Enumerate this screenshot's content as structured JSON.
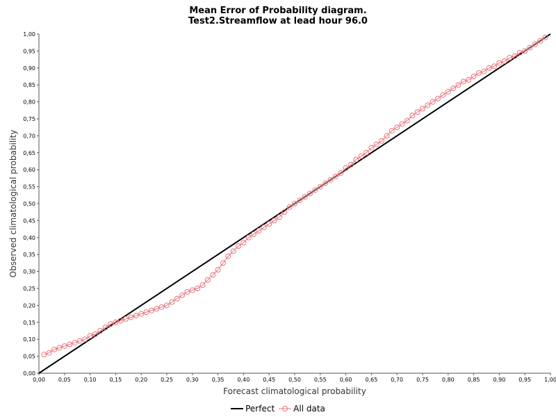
{
  "chart_data": {
    "type": "line",
    "title": "Mean Error of Probability diagram.",
    "subtitle": "Test2.Streamflow at lead hour 96.0",
    "xlabel": "Forecast climatological probability",
    "ylabel": "Observed climatological probability",
    "xlim": [
      0,
      1
    ],
    "ylim": [
      0,
      1
    ],
    "grid": false,
    "legend_position": "bottom",
    "xticks": [
      "0,00",
      "0,05",
      "0,10",
      "0,15",
      "0,20",
      "0,25",
      "0,30",
      "0,35",
      "0,40",
      "0,45",
      "0,50",
      "0,55",
      "0,60",
      "0,65",
      "0,70",
      "0,75",
      "0,80",
      "0,85",
      "0,90",
      "0,95",
      "1,00"
    ],
    "yticks": [
      "0,00",
      "0,05",
      "0,10",
      "0,15",
      "0,20",
      "0,25",
      "0,30",
      "0,35",
      "0,40",
      "0,45",
      "0,50",
      "0,55",
      "0,60",
      "0,65",
      "0,70",
      "0,75",
      "0,80",
      "0,85",
      "0,90",
      "0,95",
      "1,00"
    ],
    "series": [
      {
        "name": "Perfect",
        "color": "#000000",
        "marker": "none",
        "x": [
          0,
          1
        ],
        "y": [
          0,
          1
        ]
      },
      {
        "name": "All data",
        "color": "#e8747c",
        "marker": "circle",
        "x": [
          0.01,
          0.02,
          0.03,
          0.04,
          0.05,
          0.06,
          0.07,
          0.08,
          0.09,
          0.1,
          0.11,
          0.12,
          0.13,
          0.14,
          0.15,
          0.16,
          0.17,
          0.18,
          0.19,
          0.2,
          0.21,
          0.22,
          0.23,
          0.24,
          0.25,
          0.26,
          0.27,
          0.28,
          0.29,
          0.3,
          0.31,
          0.32,
          0.33,
          0.34,
          0.35,
          0.36,
          0.37,
          0.38,
          0.39,
          0.4,
          0.41,
          0.42,
          0.43,
          0.44,
          0.45,
          0.46,
          0.47,
          0.48,
          0.49,
          0.5,
          0.51,
          0.52,
          0.53,
          0.54,
          0.55,
          0.56,
          0.57,
          0.58,
          0.59,
          0.6,
          0.61,
          0.62,
          0.63,
          0.64,
          0.65,
          0.66,
          0.67,
          0.68,
          0.69,
          0.7,
          0.71,
          0.72,
          0.73,
          0.74,
          0.75,
          0.76,
          0.77,
          0.78,
          0.79,
          0.8,
          0.81,
          0.82,
          0.83,
          0.84,
          0.85,
          0.86,
          0.87,
          0.88,
          0.89,
          0.9,
          0.91,
          0.92,
          0.93,
          0.94,
          0.95,
          0.96,
          0.97,
          0.98,
          0.99
        ],
        "y": [
          0.055,
          0.06,
          0.07,
          0.075,
          0.08,
          0.085,
          0.09,
          0.095,
          0.1,
          0.11,
          0.115,
          0.125,
          0.135,
          0.145,
          0.15,
          0.155,
          0.16,
          0.165,
          0.17,
          0.175,
          0.18,
          0.185,
          0.19,
          0.195,
          0.2,
          0.21,
          0.22,
          0.23,
          0.24,
          0.245,
          0.25,
          0.26,
          0.275,
          0.29,
          0.305,
          0.325,
          0.345,
          0.36,
          0.375,
          0.385,
          0.4,
          0.41,
          0.42,
          0.43,
          0.44,
          0.45,
          0.46,
          0.475,
          0.49,
          0.5,
          0.51,
          0.52,
          0.53,
          0.54,
          0.55,
          0.56,
          0.57,
          0.58,
          0.59,
          0.605,
          0.615,
          0.63,
          0.64,
          0.65,
          0.665,
          0.675,
          0.685,
          0.7,
          0.715,
          0.725,
          0.735,
          0.745,
          0.76,
          0.77,
          0.78,
          0.79,
          0.8,
          0.81,
          0.82,
          0.83,
          0.84,
          0.85,
          0.86,
          0.865,
          0.875,
          0.885,
          0.89,
          0.9,
          0.905,
          0.915,
          0.92,
          0.93,
          0.935,
          0.945,
          0.95,
          0.96,
          0.97,
          0.98,
          0.99
        ]
      }
    ]
  }
}
